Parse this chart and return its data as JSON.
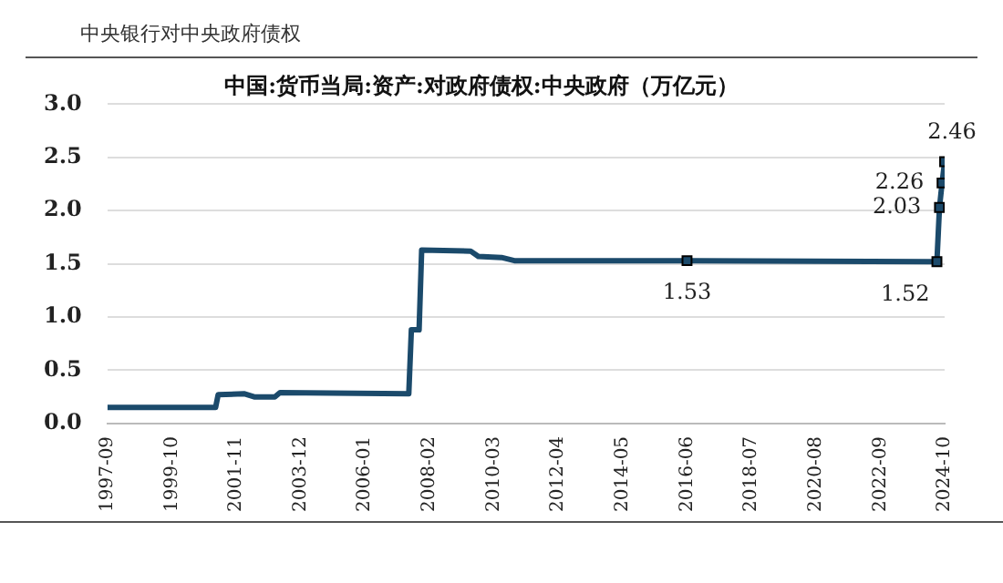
{
  "chart_data": {
    "type": "line",
    "title": "中国:货币当局:资产:对政府债权:中央政府（万亿元）",
    "subtitle": "中央银行对中央政府债权",
    "x": [
      "1997-09",
      "2001-03",
      "2001-04",
      "2002-02",
      "2002-06",
      "2003-02",
      "2003-04",
      "2007-06",
      "2007-07",
      "2007-10",
      "2007-11",
      "2009-06",
      "2009-09",
      "2010-06",
      "2010-11",
      "2016-06",
      "2024-07",
      "2024-08",
      "2024-09",
      "2024-10"
    ],
    "series": [
      {
        "color": "#1b4a6b",
        "values": [
          0.15,
          0.15,
          0.27,
          0.28,
          0.25,
          0.25,
          0.29,
          0.28,
          0.88,
          0.88,
          1.63,
          1.62,
          1.57,
          1.56,
          1.53,
          1.53,
          1.52,
          2.03,
          2.26,
          2.46
        ],
        "value_labels": [
          null,
          null,
          null,
          null,
          null,
          null,
          null,
          null,
          null,
          null,
          null,
          null,
          null,
          null,
          null,
          "1.53",
          "1.52",
          "2.03",
          "2.26",
          "2.46"
        ]
      }
    ],
    "xlim": [
      "1997-09",
      "2024-10"
    ],
    "xticks": [
      "1997-09",
      "1999-10",
      "2001-11",
      "2003-12",
      "2006-01",
      "2008-02",
      "2010-03",
      "2012-04",
      "2014-05",
      "2016-06",
      "2018-07",
      "2020-08",
      "2022-09",
      "2024-10"
    ],
    "ylim": [
      0,
      3
    ],
    "yticks": [
      {
        "value": 0,
        "label": "0.0"
      },
      {
        "value": 0.5,
        "label": "0.5"
      },
      {
        "value": 1,
        "label": "1.0"
      },
      {
        "value": 1.5,
        "label": "1.5"
      },
      {
        "value": 2,
        "label": "2.0"
      },
      {
        "value": 2.5,
        "label": "2.5"
      },
      {
        "value": 3,
        "label": "3.0"
      }
    ],
    "grid": "y",
    "legend": false,
    "line_style": "solid"
  }
}
